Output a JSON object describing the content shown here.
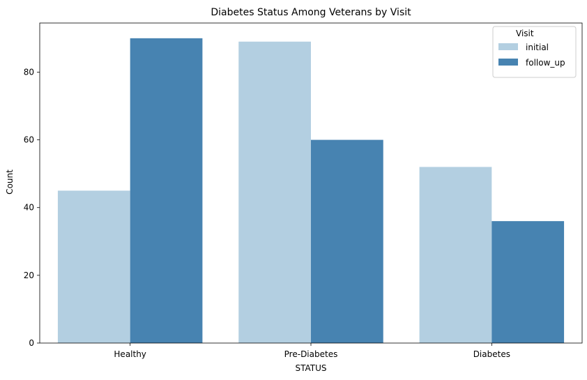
{
  "chart_data": {
    "type": "bar",
    "title": "Diabetes Status Among Veterans by Visit",
    "xlabel": "STATUS",
    "ylabel": "Count",
    "categories": [
      "Healthy",
      "Pre-Diabetes",
      "Diabetes"
    ],
    "series": [
      {
        "name": "initial",
        "color": "#b3cfe1",
        "values": [
          45,
          89,
          52
        ]
      },
      {
        "name": "follow_up",
        "color": "#4783b1",
        "values": [
          90,
          60,
          36
        ]
      }
    ],
    "ylim": [
      0,
      94.5
    ],
    "yticks": [
      0,
      20,
      40,
      60,
      80
    ],
    "grid": false,
    "legend": {
      "title": "Visit",
      "placement": "top-right"
    }
  }
}
